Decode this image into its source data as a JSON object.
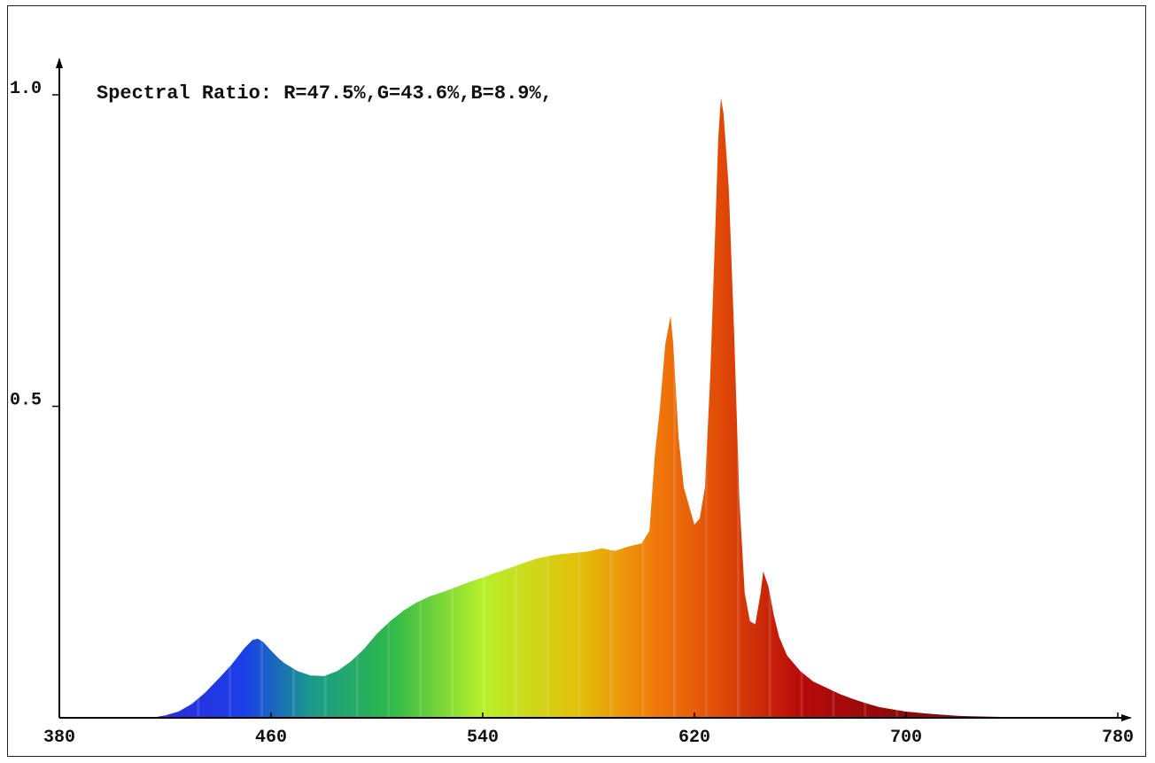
{
  "chart_data": {
    "type": "area",
    "title": "Spectral Ratio:  R=47.5%,G=43.6%,B=8.9%,",
    "xlabel": "",
    "ylabel": "",
    "xlim": [
      380,
      780
    ],
    "ylim": [
      0,
      1.0
    ],
    "xticks": [
      "380",
      "460",
      "540",
      "620",
      "700",
      "780"
    ],
    "yticks": [
      "0.5",
      "1.0"
    ],
    "grid": false,
    "series": [
      {
        "x": [
          415,
          420,
          425,
          430,
          435,
          440,
          445,
          450,
          453,
          455,
          457,
          460,
          463,
          465,
          470,
          475,
          480,
          485,
          490,
          495,
          500,
          505,
          510,
          515,
          520,
          525,
          530,
          535,
          540,
          545,
          550,
          555,
          560,
          565,
          570,
          575,
          580,
          585,
          590,
          595,
          600,
          603,
          605,
          607,
          609,
          611,
          612,
          614,
          616,
          618,
          620,
          622,
          624,
          626,
          628,
          629,
          630,
          631,
          633,
          635,
          637,
          639,
          641,
          643,
          645,
          646,
          648,
          650,
          652,
          655,
          660,
          665,
          670,
          675,
          680,
          685,
          690,
          700,
          710,
          720,
          730,
          740,
          750,
          760
        ],
        "y": [
          0,
          0.004,
          0.01,
          0.022,
          0.04,
          0.062,
          0.085,
          0.112,
          0.125,
          0.127,
          0.122,
          0.108,
          0.095,
          0.088,
          0.075,
          0.068,
          0.067,
          0.075,
          0.09,
          0.11,
          0.135,
          0.155,
          0.172,
          0.185,
          0.195,
          0.202,
          0.21,
          0.218,
          0.225,
          0.233,
          0.24,
          0.248,
          0.255,
          0.26,
          0.263,
          0.265,
          0.267,
          0.272,
          0.268,
          0.275,
          0.28,
          0.3,
          0.42,
          0.5,
          0.6,
          0.645,
          0.6,
          0.45,
          0.37,
          0.34,
          0.31,
          0.32,
          0.37,
          0.55,
          0.8,
          0.93,
          0.995,
          0.97,
          0.85,
          0.62,
          0.35,
          0.2,
          0.155,
          0.15,
          0.2,
          0.235,
          0.21,
          0.165,
          0.13,
          0.1,
          0.075,
          0.058,
          0.048,
          0.038,
          0.03,
          0.023,
          0.017,
          0.01,
          0.006,
          0.003,
          0.002,
          0.001,
          0.0005,
          0
        ]
      }
    ],
    "colors": {
      "axis": "#000000",
      "violet": "#3a1fd6",
      "blue": "#1a3fe8",
      "cyan": "#1a9a8a",
      "green": "#2eb84a",
      "yellow_green": "#b7f02a",
      "yellow": "#e2c20a",
      "orange": "#f07a0a",
      "red_orange": "#e04a08",
      "red": "#b80a0a",
      "dark_red": "#8a0a0a"
    }
  }
}
